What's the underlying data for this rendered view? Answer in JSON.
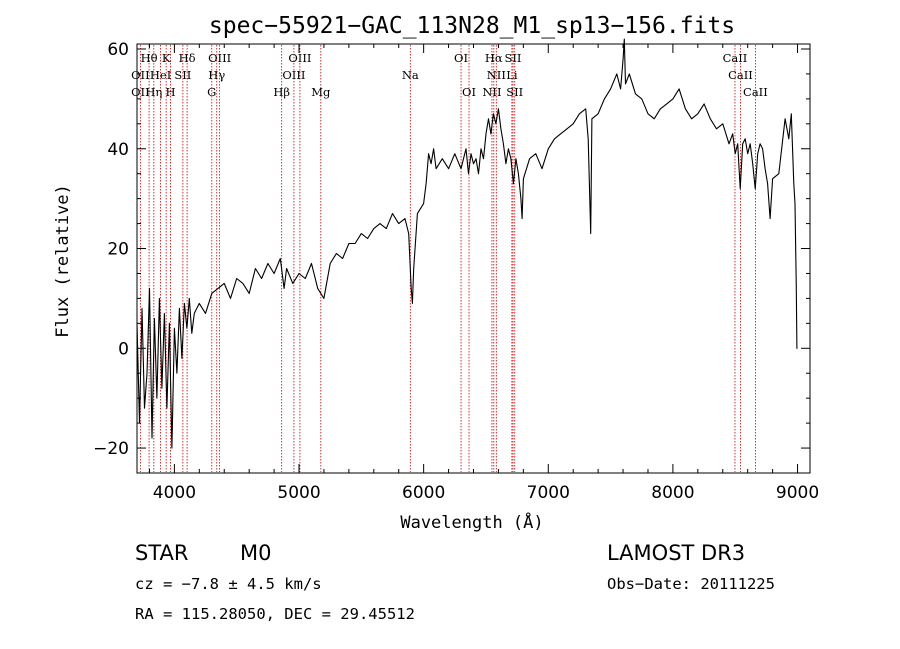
{
  "chart_data": {
    "type": "line",
    "title": "spec−55921−GAC_113N28_M1_sp13−156.fits",
    "xlabel": "Wavelength (Å)",
    "ylabel": "Flux (relative)",
    "xlim": [
      3700,
      9100
    ],
    "ylim": [
      -25,
      61
    ],
    "xticks": [
      {
        "value": 4000,
        "label": "4000"
      },
      {
        "value": 5000,
        "label": "5000"
      },
      {
        "value": 6000,
        "label": "6000"
      },
      {
        "value": 7000,
        "label": "7000"
      },
      {
        "value": 8000,
        "label": "8000"
      },
      {
        "value": 9000,
        "label": "9000"
      }
    ],
    "yticks": [
      {
        "value": -20,
        "label": "−20"
      },
      {
        "value": 0,
        "label": "0"
      },
      {
        "value": 20,
        "label": "20"
      },
      {
        "value": 40,
        "label": "40"
      },
      {
        "value": 60,
        "label": "60"
      }
    ],
    "series": [
      {
        "name": "flux",
        "color": "#000000",
        "points": [
          [
            3700,
            5
          ],
          [
            3720,
            -15
          ],
          [
            3740,
            8
          ],
          [
            3760,
            -12
          ],
          [
            3780,
            -5
          ],
          [
            3800,
            12
          ],
          [
            3820,
            -18
          ],
          [
            3840,
            6
          ],
          [
            3860,
            -10
          ],
          [
            3880,
            10
          ],
          [
            3900,
            -8
          ],
          [
            3920,
            7
          ],
          [
            3940,
            -12
          ],
          [
            3960,
            5
          ],
          [
            3980,
            -20
          ],
          [
            4000,
            4
          ],
          [
            4020,
            -5
          ],
          [
            4040,
            8
          ],
          [
            4060,
            -2
          ],
          [
            4080,
            9
          ],
          [
            4100,
            4
          ],
          [
            4120,
            10
          ],
          [
            4140,
            3
          ],
          [
            4160,
            7
          ],
          [
            4200,
            9
          ],
          [
            4250,
            7
          ],
          [
            4300,
            11
          ],
          [
            4350,
            12
          ],
          [
            4400,
            13
          ],
          [
            4450,
            10
          ],
          [
            4500,
            14
          ],
          [
            4550,
            13
          ],
          [
            4600,
            11
          ],
          [
            4650,
            16
          ],
          [
            4700,
            14
          ],
          [
            4750,
            17
          ],
          [
            4800,
            15
          ],
          [
            4850,
            18
          ],
          [
            4880,
            12
          ],
          [
            4900,
            16
          ],
          [
            4950,
            13
          ],
          [
            5000,
            15
          ],
          [
            5050,
            14
          ],
          [
            5100,
            17
          ],
          [
            5150,
            12
          ],
          [
            5200,
            10
          ],
          [
            5250,
            17
          ],
          [
            5300,
            19
          ],
          [
            5350,
            18
          ],
          [
            5400,
            21
          ],
          [
            5450,
            21
          ],
          [
            5500,
            23
          ],
          [
            5550,
            22
          ],
          [
            5600,
            24
          ],
          [
            5650,
            25
          ],
          [
            5700,
            24
          ],
          [
            5750,
            27
          ],
          [
            5800,
            25
          ],
          [
            5850,
            26
          ],
          [
            5880,
            23
          ],
          [
            5900,
            12
          ],
          [
            5910,
            9
          ],
          [
            5920,
            16
          ],
          [
            5950,
            27
          ],
          [
            6000,
            29
          ],
          [
            6020,
            33
          ],
          [
            6040,
            39
          ],
          [
            6060,
            37
          ],
          [
            6080,
            40
          ],
          [
            6100,
            36
          ],
          [
            6150,
            38
          ],
          [
            6200,
            36
          ],
          [
            6250,
            39
          ],
          [
            6300,
            36
          ],
          [
            6340,
            40
          ],
          [
            6360,
            35
          ],
          [
            6380,
            39
          ],
          [
            6400,
            37
          ],
          [
            6420,
            38
          ],
          [
            6440,
            35
          ],
          [
            6460,
            40
          ],
          [
            6480,
            38
          ],
          [
            6500,
            43
          ],
          [
            6520,
            46
          ],
          [
            6540,
            43
          ],
          [
            6560,
            47
          ],
          [
            6580,
            45
          ],
          [
            6600,
            48
          ],
          [
            6620,
            44
          ],
          [
            6640,
            41
          ],
          [
            6660,
            37
          ],
          [
            6680,
            40
          ],
          [
            6700,
            38
          ],
          [
            6720,
            33
          ],
          [
            6740,
            38
          ],
          [
            6760,
            35
          ],
          [
            6780,
            30
          ],
          [
            6790,
            26
          ],
          [
            6800,
            34
          ],
          [
            6850,
            38
          ],
          [
            6900,
            39
          ],
          [
            6950,
            36
          ],
          [
            7000,
            40
          ],
          [
            7050,
            42
          ],
          [
            7100,
            43
          ],
          [
            7150,
            44
          ],
          [
            7200,
            45
          ],
          [
            7250,
            47
          ],
          [
            7300,
            48
          ],
          [
            7320,
            42
          ],
          [
            7340,
            23
          ],
          [
            7350,
            46
          ],
          [
            7400,
            47
          ],
          [
            7450,
            50
          ],
          [
            7500,
            52
          ],
          [
            7550,
            55
          ],
          [
            7580,
            52
          ],
          [
            7600,
            58
          ],
          [
            7610,
            62
          ],
          [
            7620,
            53
          ],
          [
            7650,
            55
          ],
          [
            7700,
            51
          ],
          [
            7750,
            50
          ],
          [
            7800,
            47
          ],
          [
            7850,
            46
          ],
          [
            7900,
            48
          ],
          [
            7950,
            49
          ],
          [
            8000,
            50
          ],
          [
            8050,
            52
          ],
          [
            8100,
            48
          ],
          [
            8150,
            46
          ],
          [
            8200,
            47
          ],
          [
            8250,
            49
          ],
          [
            8300,
            46
          ],
          [
            8350,
            44
          ],
          [
            8400,
            45
          ],
          [
            8450,
            41
          ],
          [
            8480,
            43
          ],
          [
            8500,
            39
          ],
          [
            8520,
            41
          ],
          [
            8540,
            32
          ],
          [
            8560,
            41
          ],
          [
            8580,
            42
          ],
          [
            8600,
            39
          ],
          [
            8620,
            41
          ],
          [
            8640,
            37
          ],
          [
            8660,
            32
          ],
          [
            8680,
            39
          ],
          [
            8700,
            41
          ],
          [
            8720,
            40
          ],
          [
            8740,
            36
          ],
          [
            8760,
            33
          ],
          [
            8780,
            26
          ],
          [
            8800,
            34
          ],
          [
            8850,
            35
          ],
          [
            8900,
            46
          ],
          [
            8930,
            42
          ],
          [
            8950,
            47
          ],
          [
            8970,
            33
          ],
          [
            8980,
            29
          ],
          [
            8990,
            12
          ],
          [
            8995,
            0
          ],
          [
            9000,
            0
          ]
        ]
      }
    ],
    "lines": [
      {
        "wavelength": 3727,
        "label": "OII",
        "row": 2
      },
      {
        "wavelength": 3727,
        "label": "OII",
        "row": 3
      },
      {
        "wavelength": 3797,
        "label": "Hθ",
        "row": 1
      },
      {
        "wavelength": 3835,
        "label": "Hη",
        "row": 3
      },
      {
        "wavelength": 3889,
        "label": "HeI",
        "row": 2
      },
      {
        "wavelength": 3934,
        "label": "K",
        "row": 1
      },
      {
        "wavelength": 3969,
        "label": "H",
        "row": 3
      },
      {
        "wavelength": 4068,
        "label": "SII",
        "row": 2
      },
      {
        "wavelength": 4102,
        "label": "Hδ",
        "row": 1
      },
      {
        "wavelength": 4300,
        "label": "G",
        "row": 3
      },
      {
        "wavelength": 4340,
        "label": "Hγ",
        "row": 2
      },
      {
        "wavelength": 4363,
        "label": "OIII",
        "row": 1
      },
      {
        "wavelength": 4861,
        "label": "Hβ",
        "row": 3
      },
      {
        "wavelength": 4959,
        "label": "OIII",
        "row": 2
      },
      {
        "wavelength": 5007,
        "label": "OIII",
        "row": 1
      },
      {
        "wavelength": 5175,
        "label": "Mg",
        "row": 3
      },
      {
        "wavelength": 5893,
        "label": "Na",
        "row": 2
      },
      {
        "wavelength": 6300,
        "label": "OI",
        "row": 1
      },
      {
        "wavelength": 6364,
        "label": "OI",
        "row": 3
      },
      {
        "wavelength": 6548,
        "label": "NII",
        "row": 3
      },
      {
        "wavelength": 6563,
        "label": "Hα",
        "row": 1
      },
      {
        "wavelength": 6583,
        "label": "NII",
        "row": 2
      },
      {
        "wavelength": 6708,
        "label": "Li",
        "row": 2
      },
      {
        "wavelength": 6717,
        "label": "SII",
        "row": 1
      },
      {
        "wavelength": 6731,
        "label": "SII",
        "row": 3
      },
      {
        "wavelength": 8498,
        "label": "CaII",
        "row": 1
      },
      {
        "wavelength": 8542,
        "label": "CaII",
        "row": 2
      },
      {
        "wavelength": 8662,
        "label": "CaII",
        "row": 3
      }
    ]
  },
  "info": {
    "object_class": "STAR",
    "subclass": "M0",
    "survey": "LAMOST DR3",
    "cz": "cz = −7.8 ± 4.5 km/s",
    "obs_date": "Obs−Date: 20111225",
    "coords": "RA = 115.28050, DEC =  29.45512"
  },
  "colors": {
    "spectrum": "#000000",
    "line_markers": "#c00000",
    "axes": "#000000",
    "background": "#ffffff"
  }
}
